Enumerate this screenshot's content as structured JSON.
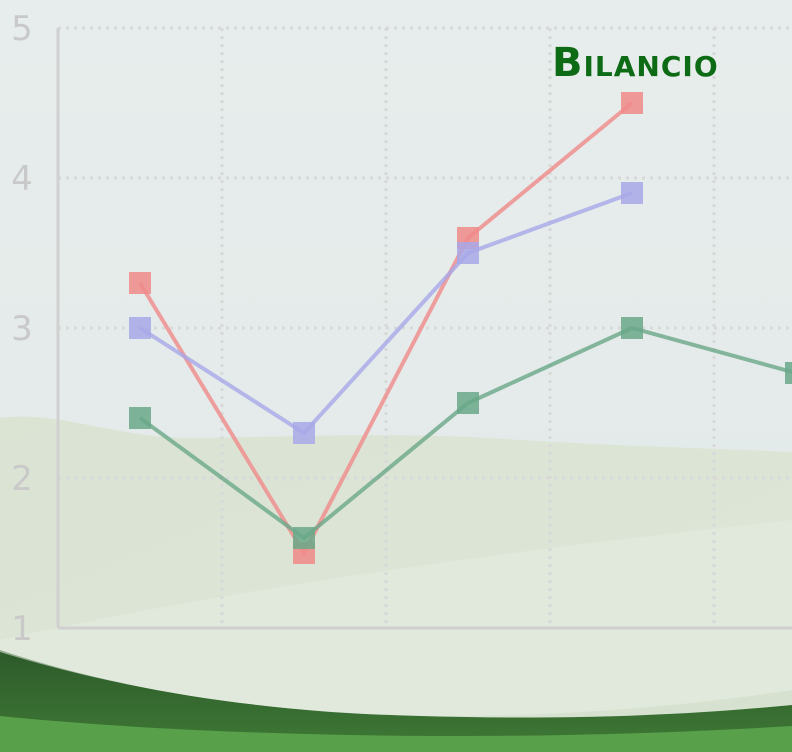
{
  "slide": {
    "title": "Bilancio"
  },
  "colors": {
    "title": "#0d6b16",
    "series_red": "#f08a8a",
    "series_blue": "#a8a8e8",
    "series_green": "#6aa888",
    "grid": "#d8d8d8"
  },
  "chart_data": {
    "type": "line",
    "title": "",
    "xlabel": "",
    "ylabel": "",
    "x": [
      1,
      2,
      3,
      4,
      5
    ],
    "ylim": [
      1,
      5
    ],
    "yticks": [
      "1",
      "2",
      "3",
      "4",
      "5"
    ],
    "grid": true,
    "legend": "none",
    "series": [
      {
        "color": "#f08a8a",
        "values": [
          3.3,
          1.5,
          3.6,
          4.5,
          null
        ]
      },
      {
        "color": "#a8a8e8",
        "values": [
          3.0,
          2.3,
          3.5,
          3.9,
          null
        ]
      },
      {
        "color": "#6aa888",
        "values": [
          2.4,
          1.6,
          2.5,
          3.0,
          2.7
        ]
      }
    ]
  }
}
